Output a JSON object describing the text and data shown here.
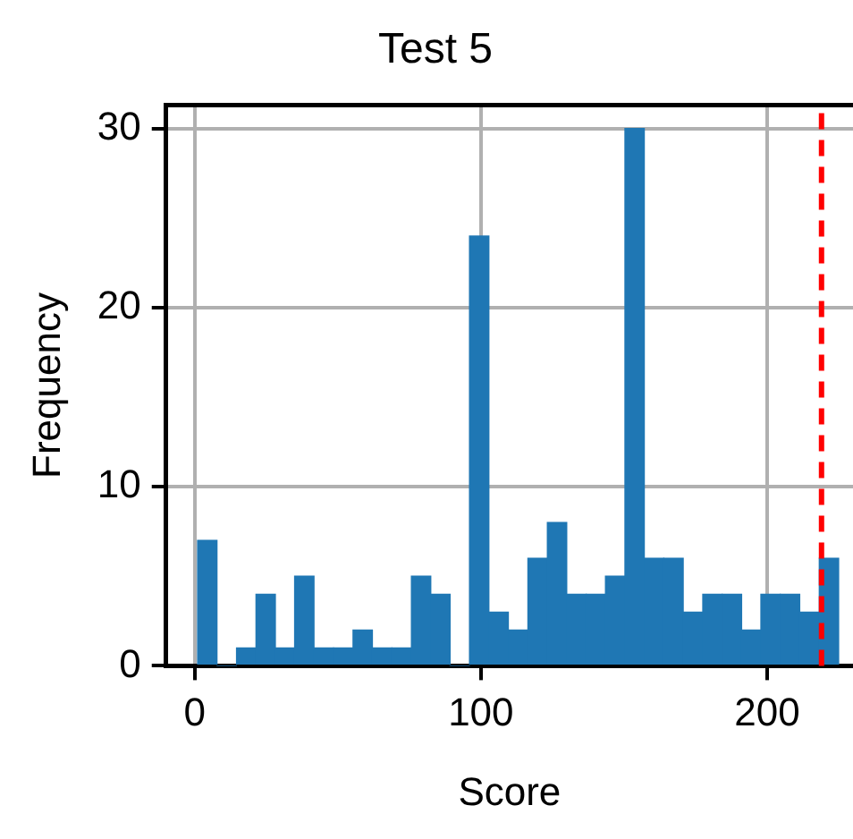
{
  "chart_data": {
    "type": "histogram",
    "title": "Test 5",
    "xlabel": "Score",
    "ylabel": "Frequency",
    "bins": [
      1,
      7.8,
      14.6,
      21.4,
      28.2,
      34.9,
      41.7,
      48.5,
      55.3,
      62.1,
      68.9,
      75.7,
      82.5,
      89.2,
      96,
      102.8,
      109.6,
      116.4,
      123.2,
      130,
      136.8,
      143.5,
      150.3,
      157.1,
      163.9,
      170.7,
      177.5,
      184.3,
      191.1,
      197.8,
      204.6,
      211.4,
      218.2,
      225
    ],
    "values": [
      7,
      0,
      1,
      4,
      1,
      5,
      1,
      1,
      2,
      1,
      1,
      5,
      4,
      0,
      24,
      3,
      2,
      6,
      8,
      4,
      4,
      5,
      30,
      6,
      6,
      3,
      4,
      4,
      2,
      4,
      4,
      3,
      6
    ],
    "color": "#1f77b4",
    "xlim": [
      -10,
      230
    ],
    "ylim": [
      0,
      31.3
    ],
    "xticks": [
      0,
      100,
      200
    ],
    "yticks": [
      0,
      10,
      20,
      30
    ],
    "grid": true,
    "ref_lines": [
      {
        "axis": "x",
        "value": 219,
        "color": "#ff0000",
        "line_style": "dashed"
      }
    ]
  }
}
